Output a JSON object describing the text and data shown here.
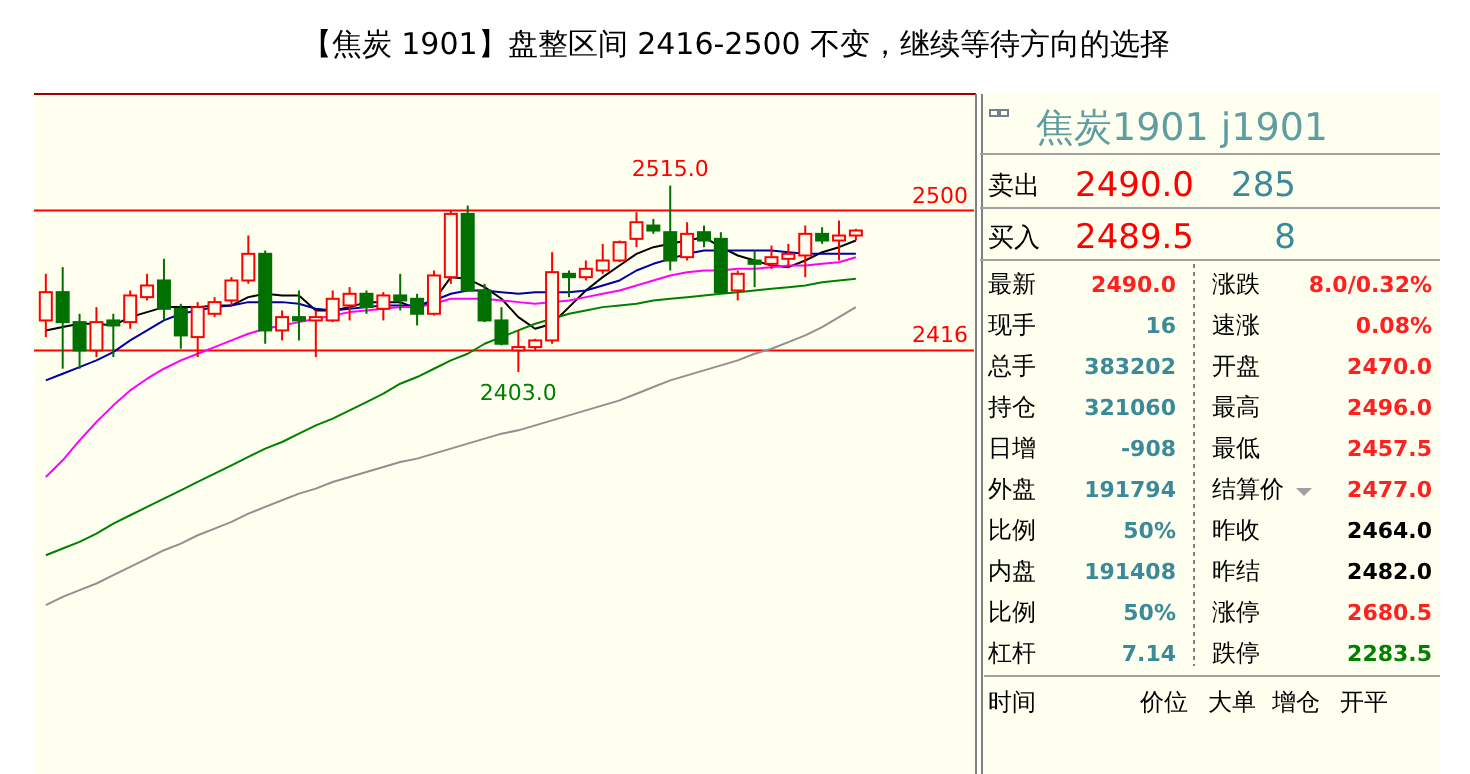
{
  "chart_data": [
    {
      "type": "candlestick",
      "title": "【焦炭 1901】盘整区间 2416-2500 不变，继续等待方向的选择",
      "ylim": [
        2164,
        2570
      ],
      "categories": [
        null,
        null,
        null,
        null,
        null,
        null,
        null,
        null,
        null,
        null,
        null,
        null,
        null,
        null,
        null,
        null,
        null,
        null,
        null,
        null,
        null,
        null,
        null,
        null,
        null,
        null,
        null,
        null,
        null,
        null,
        null,
        null,
        null,
        null,
        null,
        null,
        null,
        null,
        null,
        null,
        null,
        null,
        null,
        null,
        null,
        null,
        null,
        null,
        null
      ],
      "ohlc": [
        [
          2434,
          2462,
          2424,
          2451
        ],
        [
          2451,
          2466,
          2405,
          2433
        ],
        [
          2433,
          2438,
          2405,
          2416
        ],
        [
          2416,
          2442,
          2412,
          2433
        ],
        [
          2434,
          2438,
          2412,
          2431
        ],
        [
          2433,
          2452,
          2429,
          2449
        ],
        [
          2448,
          2462,
          2446,
          2455
        ],
        [
          2458,
          2471,
          2434,
          2441
        ],
        [
          2441,
          2444,
          2417,
          2425
        ],
        [
          2424,
          2445,
          2412,
          2442
        ],
        [
          2438,
          2448,
          2436,
          2445
        ],
        [
          2446,
          2460,
          2443,
          2458
        ],
        [
          2458,
          2485,
          2456,
          2474
        ],
        [
          2474,
          2476,
          2420,
          2428
        ],
        [
          2428,
          2440,
          2422,
          2436
        ],
        [
          2436,
          2452,
          2422,
          2434
        ],
        [
          2434,
          2440,
          2412,
          2436
        ],
        [
          2434,
          2452,
          2433,
          2447
        ],
        [
          2443,
          2454,
          2434,
          2450
        ],
        [
          2450,
          2452,
          2438,
          2442
        ],
        [
          2441,
          2451,
          2434,
          2449
        ],
        [
          2449,
          2462,
          2440,
          2446
        ],
        [
          2447,
          2450,
          2431,
          2438
        ],
        [
          2438,
          2464,
          2437,
          2461
        ],
        [
          2460,
          2500,
          2456,
          2498
        ],
        [
          2498,
          2503,
          2452,
          2452
        ],
        [
          2452,
          2456,
          2433,
          2434
        ],
        [
          2434,
          2442,
          2419,
          2420
        ],
        [
          2416,
          2428,
          2403,
          2418
        ],
        [
          2418,
          2423,
          2416,
          2422
        ],
        [
          2422,
          2475,
          2420,
          2463
        ],
        [
          2462,
          2464,
          2448,
          2460
        ],
        [
          2460,
          2470,
          2458,
          2465
        ],
        [
          2464,
          2480,
          2462,
          2470
        ],
        [
          2470,
          2482,
          2469,
          2481
        ],
        [
          2483,
          2499,
          2478,
          2493
        ],
        [
          2491,
          2495,
          2486,
          2488
        ],
        [
          2487,
          2515,
          2464,
          2470
        ],
        [
          2472,
          2493,
          2470,
          2486
        ],
        [
          2487,
          2491,
          2478,
          2482
        ],
        [
          2483,
          2487,
          2451,
          2451
        ],
        [
          2452,
          2464,
          2446,
          2462
        ],
        [
          2470,
          2476,
          2454,
          2468
        ],
        [
          2468,
          2479,
          2465,
          2472
        ],
        [
          2471,
          2480,
          2466,
          2474
        ],
        [
          2473,
          2491,
          2460,
          2486
        ],
        [
          2486,
          2490,
          2480,
          2482
        ],
        [
          2482,
          2494,
          2470,
          2485
        ],
        [
          2485,
          2489,
          2482,
          2488
        ]
      ],
      "series": [
        {
          "type": "line",
          "color": "#000000",
          "values": [
            2428,
            2430,
            2432,
            2432,
            2431,
            2436,
            2439,
            2442,
            2442,
            2442,
            2443,
            2443,
            2448,
            2450,
            2449,
            2449,
            2440,
            2440,
            2442,
            2445,
            2445,
            2445,
            2441,
            2446,
            2460,
            2459,
            2454,
            2447,
            2436,
            2429,
            2432,
            2442,
            2452,
            2460,
            2467,
            2474,
            2478,
            2480,
            2482,
            2484,
            2478,
            2473,
            2470,
            2467,
            2466,
            2470,
            2475,
            2478,
            2482
          ]
        },
        {
          "type": "line",
          "color": "#0000a0",
          "values": [
            2398,
            2402,
            2406,
            2410,
            2415,
            2422,
            2428,
            2434,
            2438,
            2440,
            2442,
            2443,
            2445,
            2445,
            2445,
            2444,
            2441,
            2440,
            2441,
            2442,
            2443,
            2443,
            2443,
            2446,
            2450,
            2452,
            2452,
            2451,
            2450,
            2451,
            2451,
            2451,
            2452,
            2455,
            2458,
            2464,
            2468,
            2471,
            2474,
            2476,
            2476,
            2476,
            2476,
            2476,
            2475,
            2474,
            2474,
            2474,
            2474
          ]
        },
        {
          "type": "line",
          "color": "#ff00ff",
          "values": [
            2340,
            2350,
            2362,
            2373,
            2383,
            2392,
            2399,
            2405,
            2410,
            2414,
            2418,
            2422,
            2426,
            2429,
            2431,
            2433,
            2435,
            2437,
            2439,
            2440,
            2441,
            2442,
            2442,
            2444,
            2447,
            2447,
            2447,
            2446,
            2445,
            2444,
            2445,
            2446,
            2448,
            2450,
            2452,
            2455,
            2458,
            2461,
            2463,
            2464,
            2464,
            2465,
            2465,
            2466,
            2467,
            2467,
            2468,
            2469,
            2472
          ]
        },
        {
          "type": "line",
          "color": "#008000",
          "values": [
            2293,
            2297,
            2301,
            2306,
            2312,
            2317,
            2322,
            2327,
            2332,
            2337,
            2342,
            2347,
            2352,
            2357,
            2361,
            2366,
            2371,
            2375,
            2380,
            2385,
            2390,
            2396,
            2400,
            2405,
            2410,
            2414,
            2420,
            2424,
            2428,
            2432,
            2435,
            2438,
            2440,
            2442,
            2443,
            2444,
            2446,
            2447,
            2448,
            2449,
            2450,
            2451,
            2452,
            2453,
            2454,
            2455,
            2457,
            2458,
            2459
          ]
        },
        {
          "type": "line",
          "color": "#909090",
          "values": [
            2263,
            2268,
            2272,
            2276,
            2281,
            2286,
            2291,
            2296,
            2300,
            2305,
            2309,
            2313,
            2318,
            2322,
            2326,
            2330,
            2333,
            2337,
            2340,
            2343,
            2346,
            2349,
            2351,
            2354,
            2357,
            2360,
            2363,
            2366,
            2368,
            2371,
            2374,
            2377,
            2380,
            2383,
            2386,
            2390,
            2394,
            2398,
            2401,
            2404,
            2407,
            2410,
            2414,
            2417,
            2421,
            2425,
            2430,
            2436,
            2442
          ]
        }
      ],
      "ref_lines": [
        {
          "axis": "y",
          "value": 2500,
          "label": "2500",
          "color": "#ff0000"
        },
        {
          "axis": "y",
          "value": 2416,
          "label": "2416",
          "color": "#ff0000"
        }
      ],
      "annotations": [
        {
          "text": "2515.0",
          "y": 2515
        },
        {
          "text": "2403.0",
          "y": 2403
        }
      ]
    },
    {
      "type": "other",
      "title": "焦炭1901   j1901",
      "annotations": [
        "卖出",
        "2490.0",
        "285",
        "买入",
        "2489.5",
        "8",
        "最新",
        "2490.0",
        "涨跌",
        "8.0/0.32%",
        "现手",
        "16",
        "速涨",
        "0.08%",
        "总手",
        "383202",
        "开盘",
        "2470.0",
        "持仓",
        "321060",
        "最高",
        "2496.0",
        "日增",
        "-908",
        "最低",
        "2457.5",
        "外盘",
        "191794",
        "结算价",
        "2477.0",
        "比例",
        "50%",
        "昨收",
        "2464.0",
        "内盘",
        "191408",
        "昨结",
        "2482.0",
        "比例",
        "50%",
        "涨停",
        "2680.5",
        "杠杆",
        "7.14",
        "跌停",
        "2283.5",
        "时间",
        "价位",
        "大单",
        "增仓",
        "开平"
      ]
    }
  ]
}
